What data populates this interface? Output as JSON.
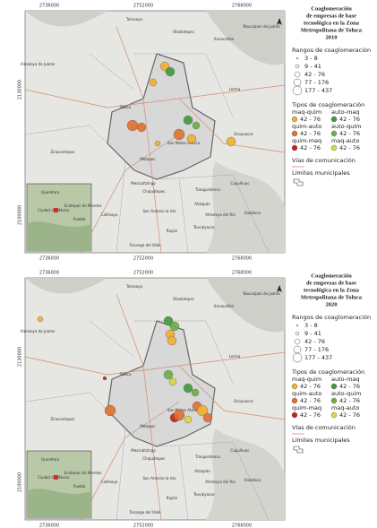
{
  "maps": [
    {
      "coords_top": [
        "2736000",
        "2752000",
        "2768000"
      ],
      "coords_side": [
        "2130000",
        "2100000"
      ],
      "places": [
        "Temoaya",
        "Otzolotepec",
        "Xonacatlán",
        "Naucalpan de Juárez",
        "Almoloya de Juárez",
        "Toluca",
        "Lerma",
        "Ocoyoacac",
        "San Mateo Atenco",
        "Zinacantepec",
        "Metepec",
        "Mexicaltzingo",
        "Chapultepec",
        "Calimaya",
        "San Antonio la Isla",
        "Rayón",
        "Tianguistenco",
        "Atizapán",
        "Almoloya del Río",
        "Texcalyacac",
        "Capulhuac",
        "Xalatlaco",
        "Tenango del Valle"
      ],
      "inset": [
        "Querétaro",
        "Ciudad de México",
        "Ecatepec de Morelos",
        "Puebla"
      ],
      "legend": {
        "title": [
          "Coaglomeración",
          "de empresas de base",
          "tecnológica en la Zona",
          "Metropolitana de Toluca",
          "2010"
        ],
        "ranges_title": "Rangos de coaglomeración",
        "ranges": [
          "3 - 8",
          "9 - 41",
          "42 - 76",
          "77 - 176",
          "177 - 437"
        ],
        "types_title": "Tipos de coaglomeración",
        "types": [
          {
            "name": "maq-quim",
            "range": "42 - 76",
            "color": "#f0b030"
          },
          {
            "name": "auto-maq",
            "range": "42 - 76",
            "color": "#3f9a3a"
          },
          {
            "name": "quim-auto",
            "range": "42 - 76",
            "color": "#e07030"
          },
          {
            "name": "auto-quim",
            "range": "42 - 76",
            "color": "#6cb040"
          },
          {
            "name": "quim-maq",
            "range": "42 - 76",
            "color": "#c82020"
          },
          {
            "name": "maq-auto",
            "range": "42 - 76",
            "color": "#d8d840"
          }
        ],
        "roads": "Vías de comunicación",
        "limits": "Límites municipales"
      }
    },
    {
      "coords_top": [
        "2736000",
        "2752000",
        "2768000"
      ],
      "coords_side": [
        "2130000",
        "2100000"
      ],
      "places": [
        "Temoaya",
        "Otzolotepec",
        "Xonacatlán",
        "Naucalpan de Juárez",
        "Almoloya de Juárez",
        "Toluca",
        "Lerma",
        "Ocoyoacac",
        "San Mateo Atenco",
        "Zinacantepec",
        "Metepec",
        "Mexicaltzingo",
        "Chapultepec",
        "Calimaya",
        "San Antonio la Isla",
        "Rayón",
        "Tianguistenco",
        "Atizapán",
        "Almoloya del Río",
        "Texcalyacac",
        "Capulhuac",
        "Xalatlaco",
        "Tenango del Valle"
      ],
      "inset": [
        "Querétaro",
        "Ciudad de México",
        "Ecatepec de Morelos",
        "Puebla"
      ],
      "legend": {
        "title": [
          "Coaglomeración",
          "de empresas de base",
          "tecnológica en la Zona",
          "Metropolitana de Toluca",
          "2020"
        ],
        "ranges_title": "Rangos de coaglomeración",
        "ranges": [
          "3 - 8",
          "9 - 41",
          "42 - 76",
          "77 - 176",
          "177 - 437"
        ],
        "types_title": "Tipos de coaglomeración",
        "types": [
          {
            "name": "maq-quim",
            "range": "42 - 76",
            "color": "#f0b030"
          },
          {
            "name": "auto-maq",
            "range": "42 - 76",
            "color": "#3f9a3a"
          },
          {
            "name": "quim-auto",
            "range": "42 - 76",
            "color": "#e07030"
          },
          {
            "name": "auto-quim",
            "range": "42 - 76",
            "color": "#6cb040"
          },
          {
            "name": "quim-maq",
            "range": "42 - 76",
            "color": "#c82020"
          },
          {
            "name": "maq-auto",
            "range": "42 - 76",
            "color": "#d8d840"
          }
        ],
        "roads": "Vías de comunicación",
        "limits": "Límites municipales"
      }
    }
  ]
}
